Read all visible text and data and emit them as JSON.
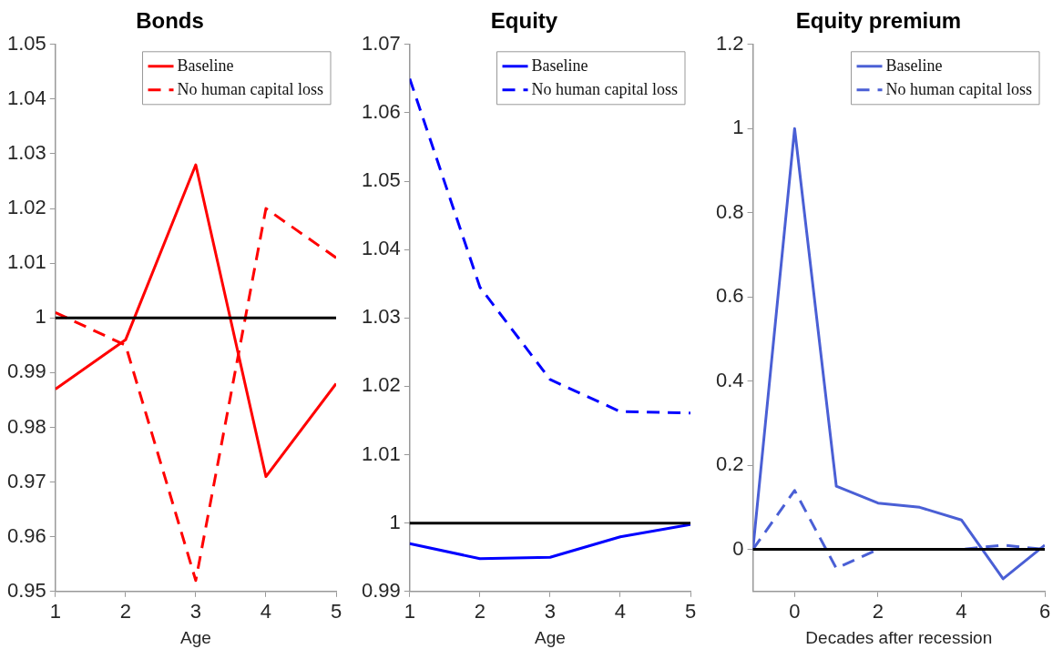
{
  "chart_data": [
    {
      "type": "line",
      "title": "Bonds",
      "xlabel": "Age",
      "x": [
        1,
        2,
        3,
        4,
        5
      ],
      "xlim": [
        1,
        5
      ],
      "xticks": [
        1,
        2,
        3,
        4,
        5
      ],
      "ylim": [
        0.95,
        1.05
      ],
      "yticks": [
        0.95,
        0.96,
        0.97,
        0.98,
        0.99,
        1,
        1.01,
        1.02,
        1.03,
        1.04,
        1.05
      ],
      "legend": "top right",
      "grid": false,
      "marker": "none",
      "series": [
        {
          "name": "Baseline",
          "color": "#ff0000",
          "line_style": "solid",
          "values": [
            0.987,
            0.996,
            1.028,
            0.971,
            0.988
          ]
        },
        {
          "name": "No human capital loss",
          "color": "#ff0000",
          "line_style": "dashed",
          "values": [
            1.001,
            0.995,
            0.952,
            1.02,
            1.011
          ]
        }
      ],
      "ref_lines": [
        {
          "axis": "y",
          "value": 1,
          "color": "#000000"
        }
      ]
    },
    {
      "type": "line",
      "title": "Equity",
      "xlabel": "Age",
      "x": [
        1,
        2,
        3,
        4,
        5
      ],
      "xlim": [
        1,
        5
      ],
      "xticks": [
        1,
        2,
        3,
        4,
        5
      ],
      "ylim": [
        0.99,
        1.07
      ],
      "yticks": [
        0.99,
        1,
        1.01,
        1.02,
        1.03,
        1.04,
        1.05,
        1.06,
        1.07
      ],
      "legend": "top right",
      "grid": false,
      "marker": "none",
      "series": [
        {
          "name": "Baseline",
          "color": "#0000ff",
          "line_style": "solid",
          "values": [
            0.997,
            0.9948,
            0.995,
            0.998,
            0.9998
          ]
        },
        {
          "name": "No human capital loss",
          "color": "#0000ff",
          "line_style": "dashed",
          "values": [
            1.065,
            1.0345,
            1.021,
            1.0163,
            1.0161
          ]
        }
      ],
      "ref_lines": [
        {
          "axis": "y",
          "value": 1,
          "color": "#000000"
        }
      ]
    },
    {
      "type": "line",
      "title": "Equity premium",
      "xlabel": "Decades after recession",
      "x": [
        -1,
        0,
        1,
        2,
        3,
        4,
        5,
        6
      ],
      "xlim": [
        -1,
        6
      ],
      "xticks": [
        0,
        2,
        4,
        6
      ],
      "ylim": [
        -0.1,
        1.2
      ],
      "yticks": [
        0,
        0.2,
        0.4,
        0.6,
        0.8,
        1,
        1.2
      ],
      "legend": "top right",
      "grid": false,
      "marker": "none",
      "series": [
        {
          "name": "Baseline",
          "color": "#4a5fd5",
          "line_style": "solid",
          "values": [
            0,
            1,
            0.15,
            0.11,
            0.1,
            0.07,
            -0.07,
            0.01
          ]
        },
        {
          "name": "No human capital loss",
          "color": "#4a5fd5",
          "line_style": "dashed",
          "values": [
            0,
            0.14,
            -0.045,
            0,
            0,
            0,
            0.01,
            0
          ]
        }
      ],
      "ref_lines": [
        {
          "axis": "y",
          "value": 0,
          "color": "#000000"
        }
      ]
    }
  ]
}
